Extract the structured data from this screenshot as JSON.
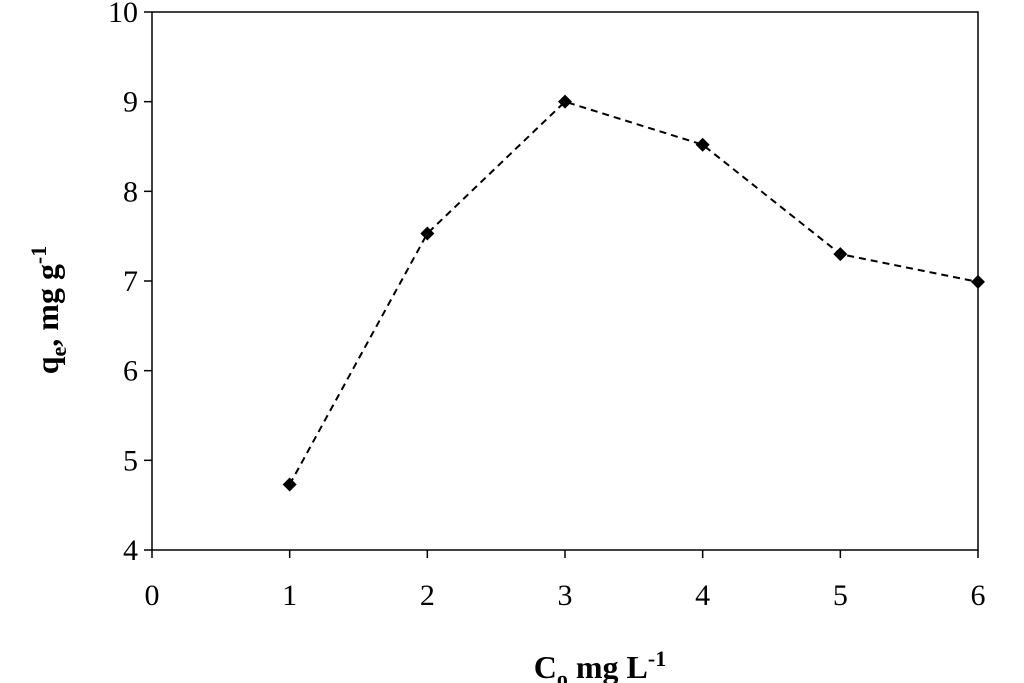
{
  "chart_data": {
    "type": "line",
    "x": [
      1,
      2,
      3,
      4,
      5,
      6
    ],
    "series": [
      {
        "color": "#000000",
        "values": [
          4.73,
          7.53,
          9.0,
          8.52,
          7.3,
          6.99
        ]
      }
    ],
    "xlim": [
      0,
      6
    ],
    "xticks": [
      0,
      1,
      2,
      3,
      4,
      5,
      6
    ],
    "ylim": [
      4,
      10
    ],
    "yticks": [
      4,
      5,
      6,
      7,
      8,
      9,
      10
    ],
    "xlabel": [
      "C",
      "o",
      " mg L",
      "-1"
    ],
    "ylabel": [
      "q",
      "e",
      ", mg g",
      "-1"
    ],
    "line_style": "dashed",
    "marker": "diamond"
  }
}
